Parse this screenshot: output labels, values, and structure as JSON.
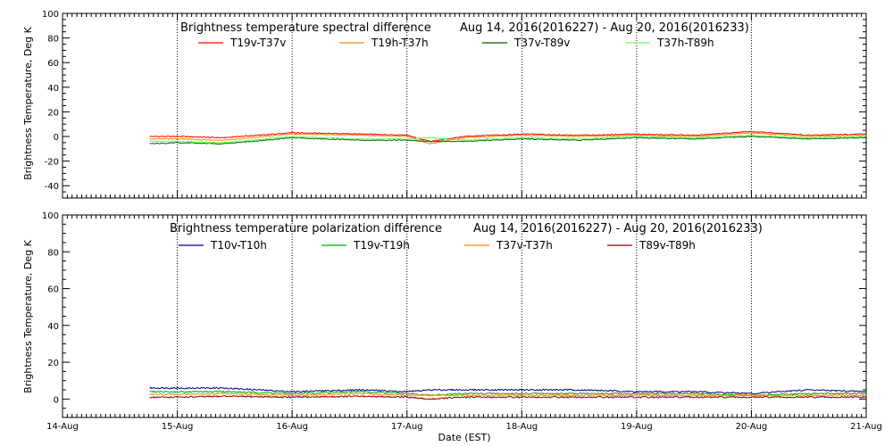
{
  "xaxis": {
    "label": "Date (EST)",
    "ticks": [
      "14-Aug",
      "15-Aug",
      "16-Aug",
      "17-Aug",
      "18-Aug",
      "19-Aug",
      "20-Aug",
      "21-Aug"
    ]
  },
  "chart_data": [
    {
      "type": "line",
      "title": "Brightness temperature spectral difference",
      "subtitle": "Aug 14, 2016(2016227) - Aug 20, 2016(2016233)",
      "ylabel": "Brightness Temperature, Deg K",
      "xlabel": "",
      "xlim": [
        0,
        7
      ],
      "ylim": [
        -50,
        100
      ],
      "yticks": [
        -40,
        -20,
        0,
        20,
        40,
        60,
        80,
        100
      ],
      "grid": "vertical dotted at day boundaries",
      "legend_position": "top-center",
      "x": [
        0.76,
        1.0,
        1.4,
        2.0,
        2.6,
        3.0,
        3.2,
        3.5,
        4.0,
        4.5,
        5.0,
        5.5,
        6.0,
        6.5,
        7.0
      ],
      "series": [
        {
          "name": "T19v-T37v",
          "color": "#ff0000",
          "values": [
            0,
            0,
            -1,
            3,
            2,
            1,
            -4,
            0,
            2,
            1,
            2,
            1,
            4,
            1,
            2
          ]
        },
        {
          "name": "T19h-T37h",
          "color": "#ff8c00",
          "values": [
            -2,
            -2,
            -3,
            2,
            1,
            0,
            -6,
            -1,
            1,
            0,
            1,
            0,
            3,
            0,
            1
          ]
        },
        {
          "name": "T37v-T89v",
          "color": "#006400",
          "values": [
            -6,
            -5,
            -6,
            -1,
            -3,
            -3,
            -4,
            -4,
            -2,
            -3,
            -1,
            -2,
            0,
            -2,
            -1
          ]
        },
        {
          "name": "T37h-T89h",
          "color": "#66ff66",
          "values": [
            -4,
            -4,
            -5,
            0,
            -2,
            -2,
            -1,
            -3,
            -1,
            -2,
            0,
            -1,
            1,
            -1,
            0
          ]
        }
      ]
    },
    {
      "type": "line",
      "title": "Brightness temperature polarization difference",
      "subtitle": "Aug 14, 2016(2016227) - Aug 20, 2016(2016233)",
      "ylabel": "Brightness Temperature, Deg K",
      "xlabel": "Date (EST)",
      "xlim": [
        0,
        7
      ],
      "ylim": [
        -10,
        100
      ],
      "yticks": [
        0,
        20,
        40,
        60,
        80,
        100
      ],
      "grid": "vertical dotted at day boundaries",
      "legend_position": "top-center",
      "x": [
        0.76,
        1.0,
        1.4,
        2.0,
        2.6,
        3.0,
        3.2,
        3.5,
        4.0,
        4.5,
        5.0,
        5.5,
        6.0,
        6.5,
        7.0
      ],
      "series": [
        {
          "name": "T10v-T10h",
          "color": "#00008b",
          "values": [
            6,
            6,
            6,
            4,
            5,
            4,
            5,
            5,
            5,
            5,
            4,
            4,
            3,
            5,
            4
          ]
        },
        {
          "name": "T19v-T19h",
          "color": "#00aa00",
          "values": [
            4,
            4,
            4,
            3,
            4,
            3,
            2,
            3,
            3,
            3,
            3,
            3,
            2,
            3,
            3
          ]
        },
        {
          "name": "T37v-T37h",
          "color": "#ff8c00",
          "values": [
            2.5,
            2.5,
            3,
            2,
            3,
            2,
            2,
            2,
            2,
            2,
            2,
            2,
            2,
            2,
            2
          ]
        },
        {
          "name": "T89v-T89h",
          "color": "#8b0000",
          "values": [
            1,
            1,
            1.5,
            1,
            1.5,
            1,
            0,
            1,
            1,
            1,
            1,
            1,
            1,
            1,
            1
          ]
        }
      ]
    }
  ]
}
